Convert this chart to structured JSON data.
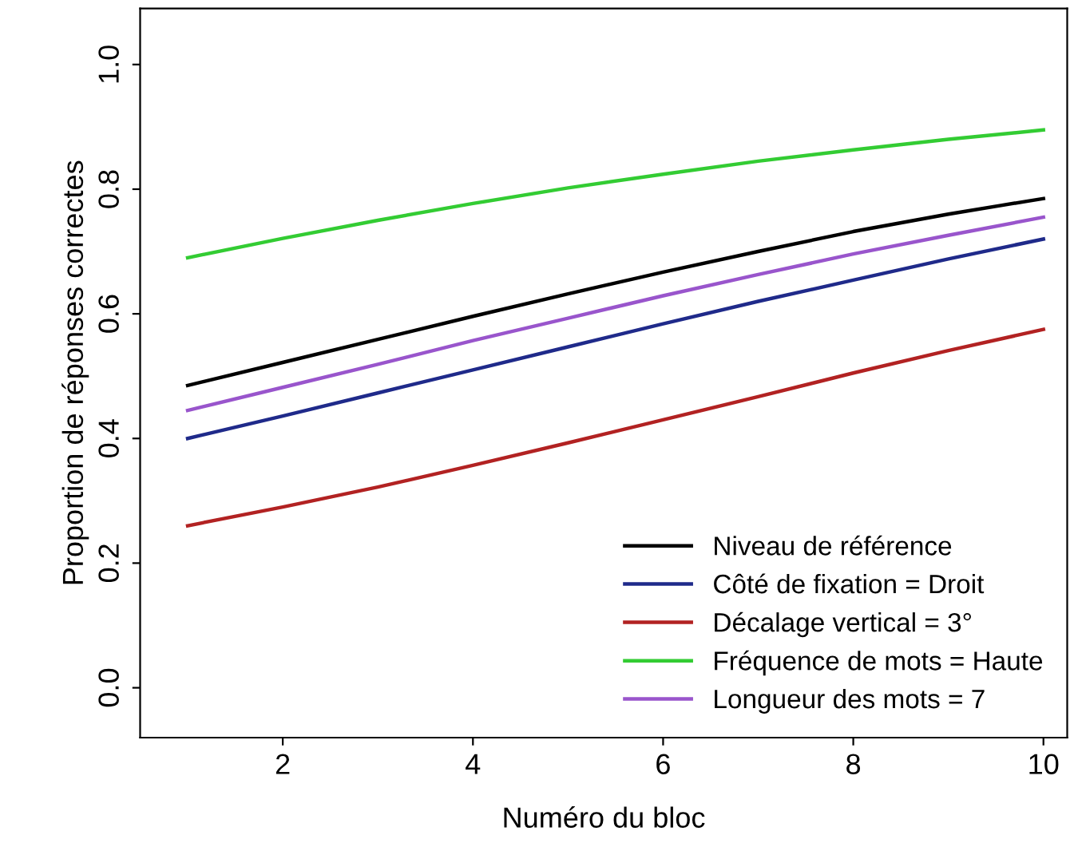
{
  "chart_data": {
    "type": "line",
    "xlabel": "Numéro du bloc",
    "ylabel": "Proportion de réponses correctes",
    "x": [
      1,
      2,
      3,
      4,
      5,
      6,
      7,
      8,
      9,
      10
    ],
    "series": [
      {
        "name": "Niveau de référence",
        "color": "#000000",
        "values": [
          0.485,
          0.522,
          0.559,
          0.596,
          0.632,
          0.667,
          0.7,
          0.732,
          0.76,
          0.785
        ]
      },
      {
        "name": "Côté de fixation = Droit",
        "color": "#1f2a8a",
        "values": [
          0.4,
          0.436,
          0.473,
          0.51,
          0.547,
          0.584,
          0.62,
          0.654,
          0.688,
          0.72
        ]
      },
      {
        "name": "Décalage vertical = 3°",
        "color": "#b22222",
        "values": [
          0.26,
          0.29,
          0.322,
          0.357,
          0.393,
          0.43,
          0.467,
          0.505,
          0.541,
          0.575
        ]
      },
      {
        "name": "Fréquence de mots = Haute",
        "color": "#33cc33",
        "values": [
          0.69,
          0.721,
          0.75,
          0.777,
          0.802,
          0.824,
          0.845,
          0.863,
          0.88,
          0.895
        ]
      },
      {
        "name": "Longueur des mots = 7",
        "color": "#9955cc",
        "values": [
          0.445,
          0.482,
          0.519,
          0.557,
          0.593,
          0.629,
          0.663,
          0.696,
          0.726,
          0.755
        ]
      }
    ],
    "xlim": [
      0.5,
      10.25
    ],
    "ylim": [
      -0.08,
      1.09
    ],
    "xticks": [
      2,
      4,
      6,
      8,
      10
    ],
    "yticks": [
      {
        "value": 0,
        "label": "0.0"
      },
      {
        "value": 0.2,
        "label": "0.2"
      },
      {
        "value": 0.4,
        "label": "0.4"
      },
      {
        "value": 0.6,
        "label": "0.6"
      },
      {
        "value": 0.8,
        "label": "0.8"
      },
      {
        "value": 1,
        "label": "1.0"
      }
    ],
    "grid": false,
    "legend": "bottom right",
    "marker": "none",
    "line_style": "solid"
  }
}
